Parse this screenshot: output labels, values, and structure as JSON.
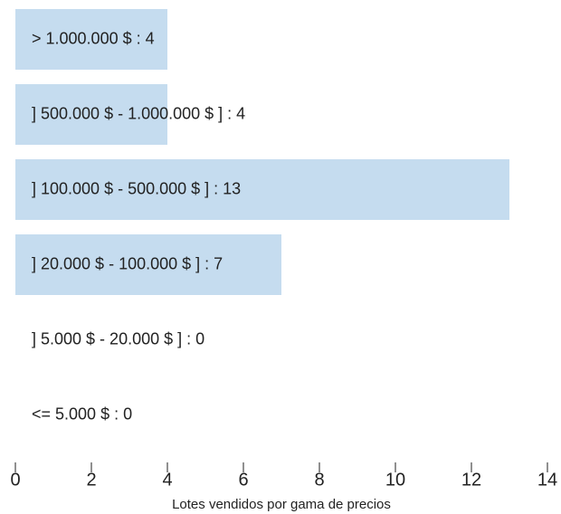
{
  "chart_data": {
    "type": "bar",
    "orientation": "horizontal",
    "categories": [
      "> 1.000.000 $ : 4",
      "] 500.000 $ - 1.000.000 $ ] : 4",
      "] 100.000 $ - 500.000 $ ] : 13",
      "] 20.000 $ - 100.000 $ ] : 7",
      "] 5.000 $ - 20.000 $ ] : 0",
      "<= 5.000 $ : 0"
    ],
    "values": [
      4,
      4,
      13,
      7,
      0,
      0
    ],
    "color": "#c5dcef",
    "xlabel": "Lotes vendidos por gama de precios",
    "xlim": [
      0,
      14
    ],
    "xticks": [
      0,
      2,
      4,
      6,
      8,
      10,
      12,
      14
    ],
    "grid": false
  }
}
